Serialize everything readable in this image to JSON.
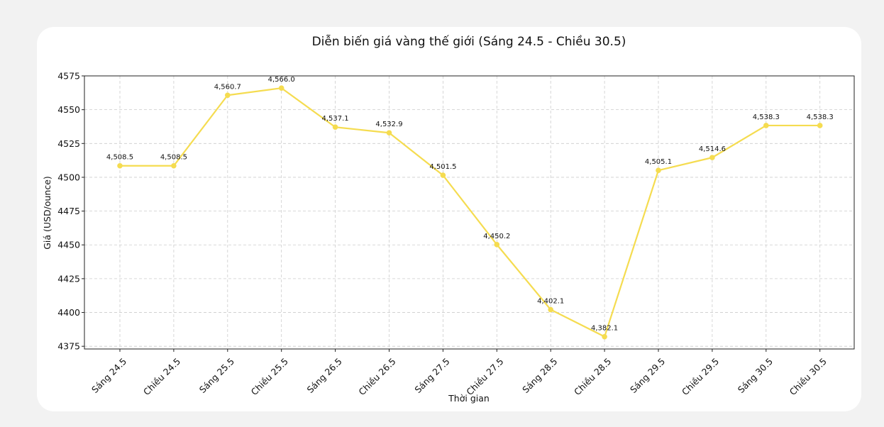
{
  "chart_data": {
    "type": "line",
    "title": "Diễn biến giá vàng thế giới (Sáng 24.5 - Chiều 30.5)",
    "xlabel": "Thời gian",
    "ylabel": "Giá (USD/ounce)",
    "categories": [
      "Sáng 24.5",
      "Chiều 24.5",
      "Sáng 25.5",
      "Chiều 25.5",
      "Sáng 26.5",
      "Chiều 26.5",
      "Sáng 27.5",
      "Chiều 27.5",
      "Sáng 28.5",
      "Chiều 28.5",
      "Sáng 29.5",
      "Chiều 29.5",
      "Sáng 30.5",
      "Chiều 30.5"
    ],
    "values": [
      4508.5,
      4508.5,
      4560.7,
      4566.0,
      4537.1,
      4532.9,
      4501.5,
      4450.2,
      4402.1,
      4382.1,
      4505.1,
      4514.6,
      4538.3,
      4538.3
    ],
    "data_labels": [
      "4,508.5",
      "4,508.5",
      "4,560.7",
      "4,566.0",
      "4,537.1",
      "4,532.9",
      "4,501.5",
      "4,450.2",
      "4,402.1",
      "4,382.1",
      "4,505.1",
      "4,514.6",
      "4,538.3",
      "4,538.3"
    ],
    "ylim": [
      4373,
      4575
    ],
    "yticks": [
      "4375",
      "4400",
      "4425",
      "4450",
      "4475",
      "4500",
      "4525",
      "4550",
      "4575"
    ],
    "ytick_values": [
      4375,
      4400,
      4425,
      4450,
      4475,
      4500,
      4525,
      4550,
      4575
    ],
    "grid": true,
    "line_color": "#f5dc50",
    "grid_color": "#cccccc"
  }
}
